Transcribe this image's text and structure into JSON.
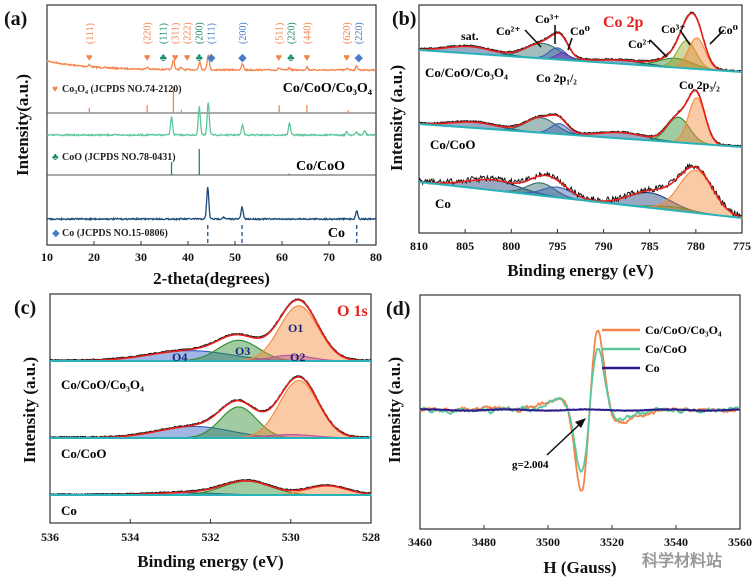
{
  "watermark": "科学材料站",
  "chart_data": [
    {
      "panel": "(a)",
      "type": "line",
      "xlabel": "2-theta(degrees)",
      "ylabel": "Intensity(a.u.)",
      "xlim": [
        10,
        80
      ],
      "xticks": [
        "10",
        "20",
        "30",
        "40",
        "50",
        "60",
        "70",
        "80"
      ],
      "series": [
        {
          "name": "Co/CoO/Co₃O₄",
          "color": "#f4844c",
          "peaks": [
            [
              19,
              2
            ],
            [
              31.3,
              2
            ],
            [
              36.9,
              10
            ],
            [
              38.5,
              2
            ],
            [
              42.5,
              8
            ],
            [
              44.3,
              15
            ],
            [
              51.6,
              6
            ],
            [
              59.4,
              2
            ],
            [
              61.6,
              2
            ],
            [
              65.3,
              3
            ],
            [
              74,
              2
            ],
            [
              75.9,
              4
            ]
          ]
        },
        {
          "name": "Co/CoO",
          "color": "#5cc79a",
          "peaks": [
            [
              36.5,
              18
            ],
            [
              42.4,
              28
            ],
            [
              44.3,
              33
            ],
            [
              51.6,
              10
            ],
            [
              61.6,
              12
            ],
            [
              73.8,
              3
            ],
            [
              75.9,
              3
            ],
            [
              77.6,
              4
            ]
          ]
        },
        {
          "name": "Co",
          "color": "#1b4a78",
          "peaks": [
            [
              44.2,
              32
            ],
            [
              47.5,
              2
            ],
            [
              51.5,
              12
            ],
            [
              75.9,
              8
            ]
          ]
        }
      ],
      "references": [
        {
          "label": "Co₃O₄ (JCPDS NO.74-2120)",
          "marker": "heart",
          "color": "#f4844c",
          "sticks": [
            [
              19,
              0.2
            ],
            [
              31.3,
              0.3
            ],
            [
              36.9,
              1
            ],
            [
              38.6,
              0.12
            ],
            [
              59.4,
              0.3
            ],
            [
              65.3,
              0.3
            ],
            [
              74.1,
              0.1
            ]
          ]
        },
        {
          "label": "CoO (JCPDS NO.78-0431)",
          "marker": "club",
          "color": "#1a8a6a",
          "sticks": [
            [
              36.5,
              0.5
            ],
            [
              42.4,
              1
            ],
            [
              61.5,
              0.05
            ]
          ]
        },
        {
          "label": "Co (JCPDS NO.15-0806)",
          "marker": "diamond",
          "color": "#4a7cc8",
          "sticks": [
            [
              44.2,
              1
            ],
            [
              51.5,
              1
            ],
            [
              75.9,
              1
            ]
          ]
        }
      ],
      "hkl_labels": [
        {
          "hkl": "(111)",
          "x": 19,
          "phase": 0
        },
        {
          "hkl": "(220)",
          "x": 31.3,
          "phase": 0
        },
        {
          "hkl": "(111)",
          "x": 36.4,
          "phase": 1
        },
        {
          "hkl": "(311)",
          "x": 37.6,
          "phase": 0
        },
        {
          "hkl": "(222)",
          "x": 39,
          "phase": 0
        },
        {
          "hkl": "(200)",
          "x": 41.9,
          "phase": 1
        },
        {
          "hkl": "(111)",
          "x": 44.3,
          "phase": 2
        },
        {
          "hkl": "(200)",
          "x": 51.6,
          "phase": 2
        },
        {
          "hkl": "(511)",
          "x": 59.4,
          "phase": 0
        },
        {
          "hkl": "(220)",
          "x": 61.8,
          "phase": 1
        },
        {
          "hkl": "(440)",
          "x": 65.3,
          "phase": 0
        },
        {
          "hkl": "(620)",
          "x": 74,
          "phase": 0
        },
        {
          "hkl": "(220)",
          "x": 76.1,
          "phase": 2
        }
      ]
    },
    {
      "panel": "(b)",
      "type": "line",
      "title": "Co 2p",
      "xlabel": "Binding energy (eV)",
      "ylabel": "Intensity (a.u.)",
      "xlim": [
        810,
        775
      ],
      "xticks": [
        "810",
        "805",
        "800",
        "795",
        "790",
        "785",
        "780",
        "775"
      ],
      "envelope_color": "#e8201c",
      "background_color": "#29b3b8",
      "spectra": [
        {
          "name": "Co/CoO/Co₃O₄",
          "noise": 0.6,
          "components": [
            {
              "c": 804.5,
              "h": 6,
              "w": 2.5,
              "color": "#1d3f7a"
            },
            {
              "c": 796.6,
              "h": 13,
              "w": 1.8,
              "color": "#2f6f6a"
            },
            {
              "c": 795.0,
              "h": 10,
              "w": 0.9,
              "color": "#3b5fb0"
            },
            {
              "c": 794.4,
              "h": 6,
              "w": 0.7,
              "color": "#6a2fc0"
            },
            {
              "c": 788,
              "h": 3,
              "w": 2.5,
              "color": "#1d3f7a"
            },
            {
              "c": 782.2,
              "h": 8,
              "w": 1.8,
              "color": "#2e8b2e"
            },
            {
              "c": 781.0,
              "h": 24,
              "w": 1.0,
              "color": "#9aa82a"
            },
            {
              "c": 779.9,
              "h": 27,
              "w": 0.9,
              "color": "#f4893a"
            }
          ]
        },
        {
          "name": "Co/CoO",
          "noise": 0.6,
          "components": [
            {
              "c": 804,
              "h": 5,
              "w": 2.5,
              "color": "#1d3f7a"
            },
            {
              "c": 796.8,
              "h": 13,
              "w": 1.6,
              "color": "#2f6f6a"
            },
            {
              "c": 794.8,
              "h": 9,
              "w": 0.9,
              "color": "#3b5fb0"
            },
            {
              "c": 788,
              "h": 5,
              "w": 2.5,
              "color": "#1d3f7a"
            },
            {
              "c": 781.9,
              "h": 22,
              "w": 1.2,
              "color": "#2e8b2e"
            },
            {
              "c": 779.9,
              "h": 40,
              "w": 0.9,
              "color": "#f4893a"
            }
          ]
        },
        {
          "name": "Co",
          "noise": 3,
          "components": [
            {
              "c": 802,
              "h": 9,
              "w": 2.8,
              "color": "#1d3f7a"
            },
            {
              "c": 796.8,
              "h": 11,
              "w": 1.5,
              "color": "#2f6f6a"
            },
            {
              "c": 795,
              "h": 9,
              "w": 1.6,
              "color": "#3b5fb0"
            },
            {
              "c": 785,
              "h": 13,
              "w": 2.3,
              "color": "#1d3f7a"
            },
            {
              "c": 782.5,
              "h": 3,
              "w": 2,
              "color": "#2e8b2e"
            },
            {
              "c": 780,
              "h": 37,
              "w": 1.8,
              "color": "#f4893a"
            }
          ]
        }
      ],
      "annotations": [
        "sat.",
        "Co²⁺",
        "Co³⁺",
        "Co⁰",
        "Co²⁺",
        "Co³⁺",
        "Co⁰",
        "Co 2p₁/₂",
        "Co 2p₃/₂"
      ]
    },
    {
      "panel": "(c)",
      "type": "line",
      "title": "O 1s",
      "xlabel": "Binding energy (eV)",
      "ylabel": "Intensity (a.u.)",
      "xlim": [
        536,
        528
      ],
      "xticks": [
        "536",
        "534",
        "532",
        "530",
        "528"
      ],
      "envelope_color": "#e8201c",
      "background_color": "#29b3b8",
      "spectra": [
        {
          "name": "Co/CoO/Co₃O₄",
          "components": [
            {
              "label": "O4",
              "c": 532.5,
              "h": 9,
              "w": 1.0,
              "color": "#2f5fc0"
            },
            {
              "label": "O3",
              "c": 531.3,
              "h": 18,
              "w": 0.5,
              "color": "#2e8b2e"
            },
            {
              "label": "O2",
              "c": 530.0,
              "h": 5,
              "w": 0.5,
              "color": "#8a2be2"
            },
            {
              "label": "O1",
              "c": 529.8,
              "h": 48,
              "w": 0.48,
              "color": "#f4893a"
            }
          ]
        },
        {
          "name": "Co/CoO",
          "components": [
            {
              "c": 532.4,
              "h": 10,
              "w": 0.9,
              "color": "#2f5fc0"
            },
            {
              "c": 531.3,
              "h": 27,
              "w": 0.45,
              "color": "#2e8b2e"
            },
            {
              "c": 530.0,
              "h": 3,
              "w": 0.6,
              "color": "#8a2be2"
            },
            {
              "c": 529.8,
              "h": 50,
              "w": 0.48,
              "color": "#f4893a"
            }
          ]
        },
        {
          "name": "Co",
          "components": [
            {
              "c": 532.6,
              "h": 2,
              "w": 0.8,
              "color": "#2f5fc0"
            },
            {
              "c": 531.1,
              "h": 12,
              "w": 0.6,
              "color": "#2e8b2e"
            },
            {
              "c": 529.1,
              "h": 8,
              "w": 0.5,
              "color": "#f4893a"
            }
          ]
        }
      ]
    },
    {
      "panel": "(d)",
      "type": "line",
      "xlabel": "H (Gauss)",
      "ylabel": "Intensity (a.u.)",
      "xlim": [
        3460,
        3560
      ],
      "xticks": [
        "3460",
        "3480",
        "3500",
        "3520",
        "3540",
        "3560"
      ],
      "legend": "top-right",
      "annotation": "g=2.004",
      "resonance_center_G": 3513,
      "series": [
        {
          "name": "Co/CoO/Co₃O₄",
          "color": "#f4844c",
          "amplitude": 1.0
        },
        {
          "name": "Co/CoO",
          "color": "#5cc79a",
          "amplitude": 0.78
        },
        {
          "name": "Co",
          "color": "#2a1a8a",
          "amplitude": 0.0
        }
      ]
    }
  ]
}
